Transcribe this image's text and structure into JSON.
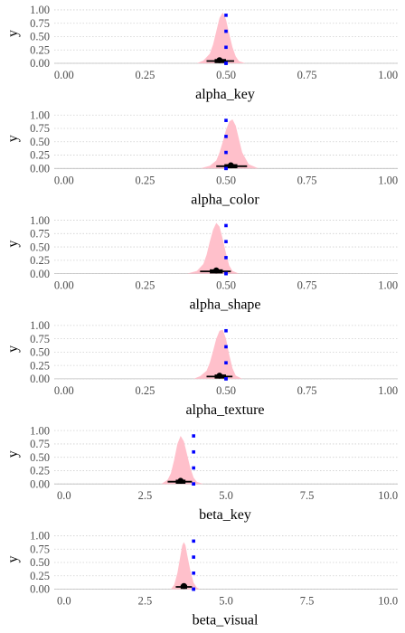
{
  "chart_data": [
    {
      "type": "area",
      "xlabel": "alpha_key",
      "ylabel": "y",
      "xlim": [
        -0.03,
        1.03
      ],
      "ylim": [
        0,
        1.05
      ],
      "x_ticks": [
        "0.00",
        "0.25",
        "0.50",
        "0.75",
        "1.00"
      ],
      "x_tick_values": [
        0,
        0.25,
        0.5,
        0.75,
        1.0
      ],
      "y_ticks": [
        "0.00",
        "0.25",
        "0.50",
        "0.75",
        "1.00"
      ],
      "y_tick_values": [
        0,
        0.25,
        0.5,
        0.75,
        1.0
      ],
      "density": {
        "x": [
          0.41,
          0.43,
          0.45,
          0.46,
          0.47,
          0.48,
          0.49,
          0.5,
          0.51,
          0.52,
          0.53,
          0.54,
          0.56
        ],
        "y": [
          0,
          0.05,
          0.18,
          0.35,
          0.6,
          0.85,
          0.95,
          0.82,
          0.55,
          0.3,
          0.13,
          0.04,
          0
        ]
      },
      "interval": {
        "median": 0.48,
        "inner": [
          0.465,
          0.5
        ],
        "outer": [
          0.44,
          0.525
        ]
      },
      "reference_points": {
        "x": [
          0.5,
          0.5,
          0.5,
          0.5,
          0.5
        ],
        "y": [
          0.0,
          0.3,
          0.6,
          0.9,
          0.0
        ]
      },
      "colors": {
        "density": "#ffc0cb",
        "interval": "#000000",
        "points": "#0000ff"
      }
    },
    {
      "type": "area",
      "xlabel": "alpha_color",
      "ylabel": "y",
      "xlim": [
        -0.03,
        1.03
      ],
      "ylim": [
        0,
        1.05
      ],
      "x_ticks": [
        "0.00",
        "0.25",
        "0.50",
        "0.75",
        "1.00"
      ],
      "x_tick_values": [
        0,
        0.25,
        0.5,
        0.75,
        1.0
      ],
      "y_ticks": [
        "0.00",
        "0.25",
        "0.50",
        "0.75",
        "1.00"
      ],
      "y_tick_values": [
        0,
        0.25,
        0.5,
        0.75,
        1.0
      ],
      "density": {
        "x": [
          0.42,
          0.45,
          0.47,
          0.48,
          0.49,
          0.5,
          0.51,
          0.52,
          0.53,
          0.54,
          0.55,
          0.57,
          0.6
        ],
        "y": [
          0,
          0.05,
          0.15,
          0.3,
          0.5,
          0.72,
          0.88,
          0.92,
          0.8,
          0.55,
          0.3,
          0.08,
          0
        ]
      },
      "interval": {
        "median": 0.515,
        "inner": [
          0.495,
          0.535
        ],
        "outer": [
          0.47,
          0.565
        ]
      },
      "reference_points": {
        "x": [
          0.5,
          0.5,
          0.5,
          0.5,
          0.5
        ],
        "y": [
          0.0,
          0.3,
          0.6,
          0.9,
          0.0
        ]
      },
      "colors": {
        "density": "#ffc0cb",
        "interval": "#000000",
        "points": "#0000ff"
      }
    },
    {
      "type": "area",
      "xlabel": "alpha_shape",
      "ylabel": "y",
      "xlim": [
        -0.03,
        1.03
      ],
      "ylim": [
        0,
        1.05
      ],
      "x_ticks": [
        "0.00",
        "0.25",
        "0.50",
        "0.75",
        "1.00"
      ],
      "x_tick_values": [
        0,
        0.25,
        0.5,
        0.75,
        1.0
      ],
      "y_ticks": [
        "0.00",
        "0.25",
        "0.50",
        "0.75",
        "1.00"
      ],
      "y_tick_values": [
        0,
        0.25,
        0.5,
        0.75,
        1.0
      ],
      "density": {
        "x": [
          0.38,
          0.41,
          0.43,
          0.44,
          0.45,
          0.46,
          0.47,
          0.48,
          0.49,
          0.5,
          0.51,
          0.52,
          0.54
        ],
        "y": [
          0,
          0.05,
          0.18,
          0.35,
          0.6,
          0.82,
          0.95,
          0.88,
          0.65,
          0.38,
          0.15,
          0.05,
          0
        ]
      },
      "interval": {
        "median": 0.47,
        "inner": [
          0.45,
          0.49
        ],
        "outer": [
          0.42,
          0.515
        ]
      },
      "reference_points": {
        "x": [
          0.5,
          0.5,
          0.5,
          0.5,
          0.5
        ],
        "y": [
          0.0,
          0.3,
          0.6,
          0.9,
          0.0
        ]
      },
      "colors": {
        "density": "#ffc0cb",
        "interval": "#000000",
        "points": "#0000ff"
      }
    },
    {
      "type": "area",
      "xlabel": "alpha_texture",
      "ylabel": "y",
      "xlim": [
        -0.03,
        1.03
      ],
      "ylim": [
        0,
        1.05
      ],
      "x_ticks": [
        "0.00",
        "0.25",
        "0.50",
        "0.75",
        "1.00"
      ],
      "x_tick_values": [
        0,
        0.25,
        0.5,
        0.75,
        1.0
      ],
      "y_ticks": [
        "0.00",
        "0.25",
        "0.50",
        "0.75",
        "1.00"
      ],
      "y_tick_values": [
        0,
        0.25,
        0.5,
        0.75,
        1.0
      ],
      "density": {
        "x": [
          0.4,
          0.42,
          0.44,
          0.45,
          0.46,
          0.47,
          0.48,
          0.49,
          0.5,
          0.51,
          0.52,
          0.53,
          0.55
        ],
        "y": [
          0,
          0.05,
          0.15,
          0.3,
          0.52,
          0.75,
          0.9,
          0.92,
          0.75,
          0.45,
          0.2,
          0.06,
          0
        ]
      },
      "interval": {
        "median": 0.48,
        "inner": [
          0.465,
          0.5
        ],
        "outer": [
          0.44,
          0.52
        ]
      },
      "reference_points": {
        "x": [
          0.5,
          0.5,
          0.5,
          0.5,
          0.5
        ],
        "y": [
          0.0,
          0.3,
          0.6,
          0.9,
          0.0
        ]
      },
      "colors": {
        "density": "#ffc0cb",
        "interval": "#000000",
        "points": "#0000ff"
      }
    },
    {
      "type": "area",
      "xlabel": "beta_key",
      "ylabel": "y",
      "xlim": [
        -0.3,
        10.3
      ],
      "ylim": [
        0,
        1.05
      ],
      "x_ticks": [
        "0.0",
        "2.5",
        "5.0",
        "7.5",
        "10.0"
      ],
      "x_tick_values": [
        0,
        2.5,
        5.0,
        7.5,
        10.0
      ],
      "y_ticks": [
        "0.00",
        "0.25",
        "0.50",
        "0.75",
        "1.00"
      ],
      "y_tick_values": [
        0,
        0.25,
        0.5,
        0.75,
        1.0
      ],
      "density": {
        "x": [
          3.0,
          3.2,
          3.3,
          3.4,
          3.5,
          3.6,
          3.7,
          3.8,
          3.9,
          4.0,
          4.1,
          4.3
        ],
        "y": [
          0,
          0.08,
          0.2,
          0.45,
          0.75,
          0.9,
          0.8,
          0.55,
          0.3,
          0.12,
          0.04,
          0
        ]
      },
      "interval": {
        "median": 3.6,
        "inner": [
          3.45,
          3.75
        ],
        "outer": [
          3.2,
          3.95
        ]
      },
      "reference_points": {
        "x": [
          4.0,
          4.0,
          4.0,
          4.0,
          4.0
        ],
        "y": [
          0.0,
          0.3,
          0.6,
          0.9,
          0.0
        ]
      },
      "colors": {
        "density": "#ffc0cb",
        "interval": "#000000",
        "points": "#0000ff"
      }
    },
    {
      "type": "area",
      "xlabel": "beta_visual",
      "ylabel": "y",
      "xlim": [
        -0.3,
        10.3
      ],
      "ylim": [
        0,
        1.05
      ],
      "x_ticks": [
        "0.0",
        "2.5",
        "5.0",
        "7.5",
        "10.0"
      ],
      "x_tick_values": [
        0,
        2.5,
        5.0,
        7.5,
        10.0
      ],
      "y_ticks": [
        "0.00",
        "0.25",
        "0.50",
        "0.75",
        "1.00"
      ],
      "y_tick_values": [
        0,
        0.25,
        0.5,
        0.75,
        1.0
      ],
      "density": {
        "x": [
          3.3,
          3.4,
          3.5,
          3.6,
          3.65,
          3.7,
          3.75,
          3.8,
          3.9,
          4.0,
          4.1,
          4.2
        ],
        "y": [
          0,
          0.08,
          0.3,
          0.65,
          0.82,
          0.88,
          0.82,
          0.65,
          0.35,
          0.12,
          0.03,
          0
        ]
      },
      "interval": {
        "median": 3.7,
        "inner": [
          3.6,
          3.8
        ],
        "outer": [
          3.45,
          3.95
        ]
      },
      "reference_points": {
        "x": [
          4.0,
          4.0,
          4.0,
          4.0,
          4.0
        ],
        "y": [
          0.0,
          0.3,
          0.6,
          0.9,
          0.0
        ]
      },
      "colors": {
        "density": "#ffc0cb",
        "interval": "#000000",
        "points": "#0000ff"
      }
    }
  ]
}
